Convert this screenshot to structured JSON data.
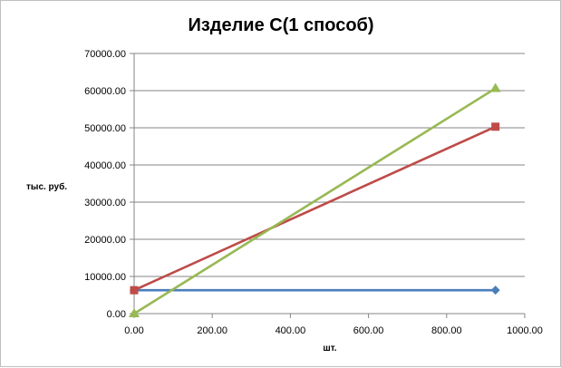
{
  "chart_data": {
    "type": "line",
    "title": "Изделие С(1 способ)",
    "xlabel": "шт.",
    "ylabel": "тыс.  руб.",
    "xlim": [
      0,
      1000
    ],
    "ylim": [
      0,
      70000
    ],
    "x_ticks": [
      "0.00",
      "200.00",
      "400.00",
      "600.00",
      "800.00",
      "1000.00"
    ],
    "y_ticks": [
      "0.00",
      "10000.00",
      "20000.00",
      "30000.00",
      "40000.00",
      "50000.00",
      "60000.00",
      "70000.00"
    ],
    "grid": true,
    "legend": "none",
    "series": [
      {
        "x": [
          0,
          925
        ],
        "y": [
          6300,
          6300
        ],
        "color": "#4a7ebb",
        "marker": "diamond"
      },
      {
        "x": [
          0,
          925
        ],
        "y": [
          6300,
          50300
        ],
        "color": "#be4b48",
        "marker": "square"
      },
      {
        "x": [
          0,
          925
        ],
        "y": [
          0,
          60600
        ],
        "color": "#98b954",
        "marker": "triangle"
      }
    ]
  }
}
